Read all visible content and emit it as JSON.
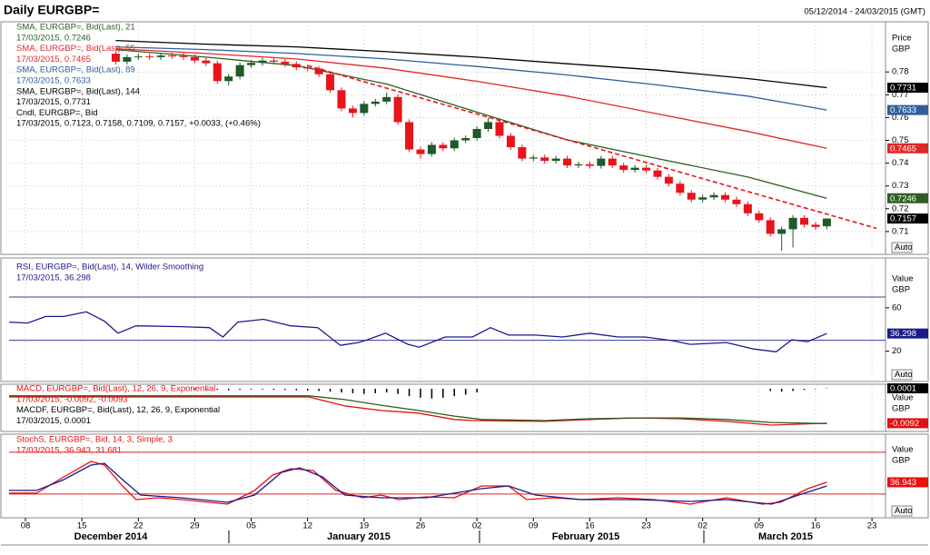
{
  "header": {
    "title": "Daily EURGBP=",
    "range": "05/12/2014 - 24/03/2015 (GMT)"
  },
  "months": [
    "December 2014",
    "January 2015",
    "February 2015",
    "March 2015"
  ],
  "chart_data": [
    {
      "type": "candlestick",
      "axis_title": [
        "Price",
        "GBP"
      ],
      "auto_label": "Auto",
      "grid": true,
      "xlim": [
        -1.45,
        76.2
      ],
      "ylim": [
        0.7,
        0.802
      ],
      "yticks": [
        0.71,
        0.72,
        0.73,
        0.74,
        0.75,
        0.76,
        0.77,
        0.78
      ],
      "up_color": "#1e5a2a",
      "down_color": "#e8141c",
      "candle_name": "Cndl, EURGBP=, Bid",
      "candle_value": "17/03/2015, 0.7123, 0.7158, 0.7109, 0.7157, +0.0033, (+0.46%)",
      "x": [
        8,
        9,
        10,
        11,
        12,
        13,
        14,
        15,
        16,
        17,
        18,
        19,
        20,
        21,
        22,
        23,
        24,
        25,
        26,
        27,
        28,
        29,
        30,
        31,
        32,
        33,
        34,
        35,
        36,
        37,
        38,
        39,
        40,
        41,
        42,
        43,
        44,
        45,
        46,
        47,
        48,
        49,
        50,
        51,
        52,
        53,
        54,
        55,
        56,
        57,
        58,
        59,
        60,
        61,
        62,
        63,
        64,
        65,
        66,
        67,
        68,
        69,
        70,
        71
      ],
      "ohlc": [
        [
          0.788,
          0.7892,
          0.7833,
          0.7845
        ],
        [
          0.7845,
          0.7877,
          0.7833,
          0.7865
        ],
        [
          0.7865,
          0.788,
          0.7853,
          0.7868
        ],
        [
          0.7868,
          0.788,
          0.7853,
          0.7865
        ],
        [
          0.7865,
          0.7884,
          0.7853,
          0.7872
        ],
        [
          0.7872,
          0.7884,
          0.7858,
          0.787
        ],
        [
          0.787,
          0.7882,
          0.7853,
          0.7865
        ],
        [
          0.7865,
          0.7877,
          0.7838,
          0.785
        ],
        [
          0.785,
          0.7862,
          0.7826,
          0.7838
        ],
        [
          0.7838,
          0.785,
          0.7748,
          0.776
        ],
        [
          0.776,
          0.7792,
          0.774,
          0.778
        ],
        [
          0.778,
          0.7842,
          0.7768,
          0.783
        ],
        [
          0.783,
          0.7852,
          0.7818,
          0.784
        ],
        [
          0.784,
          0.7862,
          0.7828,
          0.785
        ],
        [
          0.785,
          0.7862,
          0.7833,
          0.7845
        ],
        [
          0.7845,
          0.7857,
          0.7823,
          0.7835
        ],
        [
          0.7835,
          0.7847,
          0.7808,
          0.782
        ],
        [
          0.782,
          0.7832,
          0.7803,
          0.7815
        ],
        [
          0.7815,
          0.7827,
          0.7778,
          0.779
        ],
        [
          0.779,
          0.7802,
          0.7708,
          0.772
        ],
        [
          0.772,
          0.7732,
          0.7628,
          0.764
        ],
        [
          0.764,
          0.7652,
          0.76,
          0.762
        ],
        [
          0.762,
          0.7672,
          0.7608,
          0.766
        ],
        [
          0.766,
          0.7682,
          0.7648,
          0.767
        ],
        [
          0.767,
          0.771,
          0.7658,
          0.769
        ],
        [
          0.769,
          0.7702,
          0.7568,
          0.758
        ],
        [
          0.758,
          0.7592,
          0.7448,
          0.746
        ],
        [
          0.746,
          0.7472,
          0.742,
          0.744
        ],
        [
          0.744,
          0.7492,
          0.7428,
          0.748
        ],
        [
          0.748,
          0.7492,
          0.7453,
          0.7465
        ],
        [
          0.7465,
          0.7512,
          0.7453,
          0.75
        ],
        [
          0.75,
          0.7522,
          0.7488,
          0.751
        ],
        [
          0.751,
          0.7562,
          0.7498,
          0.755
        ],
        [
          0.755,
          0.76,
          0.7538,
          0.758
        ],
        [
          0.758,
          0.7592,
          0.7508,
          0.752
        ],
        [
          0.752,
          0.7532,
          0.7458,
          0.747
        ],
        [
          0.747,
          0.7482,
          0.7408,
          0.742
        ],
        [
          0.742,
          0.7437,
          0.7408,
          0.7425
        ],
        [
          0.7425,
          0.7437,
          0.7398,
          0.741
        ],
        [
          0.741,
          0.7432,
          0.7398,
          0.742
        ],
        [
          0.742,
          0.7432,
          0.7378,
          0.739
        ],
        [
          0.739,
          0.7407,
          0.7378,
          0.7395
        ],
        [
          0.7395,
          0.7407,
          0.7376,
          0.7388
        ],
        [
          0.7388,
          0.7432,
          0.7376,
          0.742
        ],
        [
          0.742,
          0.7432,
          0.7378,
          0.739
        ],
        [
          0.739,
          0.7402,
          0.7358,
          0.737
        ],
        [
          0.737,
          0.7392,
          0.7358,
          0.738
        ],
        [
          0.738,
          0.7392,
          0.7356,
          0.7368
        ],
        [
          0.7368,
          0.738,
          0.7328,
          0.734
        ],
        [
          0.734,
          0.7352,
          0.7298,
          0.731
        ],
        [
          0.731,
          0.7322,
          0.7258,
          0.727
        ],
        [
          0.727,
          0.7282,
          0.7228,
          0.724
        ],
        [
          0.724,
          0.7262,
          0.7228,
          0.725
        ],
        [
          0.725,
          0.7272,
          0.7238,
          0.726
        ],
        [
          0.726,
          0.7272,
          0.7228,
          0.724
        ],
        [
          0.724,
          0.7252,
          0.7208,
          0.722
        ],
        [
          0.722,
          0.7232,
          0.7168,
          0.718
        ],
        [
          0.718,
          0.7192,
          0.7138,
          0.715
        ],
        [
          0.715,
          0.7162,
          0.7078,
          0.709
        ],
        [
          0.709,
          0.7122,
          0.7015,
          0.711
        ],
        [
          0.711,
          0.7172,
          0.703,
          0.716
        ],
        [
          0.716,
          0.7172,
          0.7118,
          0.713
        ],
        [
          0.713,
          0.7142,
          0.7108,
          0.712
        ],
        [
          0.7123,
          0.7158,
          0.7109,
          0.7157
        ]
      ],
      "badge_color": "#000000",
      "series": [
        {
          "name": "SMA, EURGBP=, Bid(Last), 21",
          "legend_value": "17/03/2015, 0.7246",
          "color": "#2e5e22",
          "badge": true,
          "x": [
            8,
            16,
            24,
            32,
            40,
            48,
            56,
            64,
            71
          ],
          "values": [
            0.7898,
            0.7865,
            0.7828,
            0.7747,
            0.7624,
            0.7502,
            0.742,
            0.7339,
            0.7246
          ]
        },
        {
          "name": "SMA, EURGBP=, Bid(Last), 55",
          "legend_value": "17/03/2015, 0.7465",
          "color": "#e02828",
          "badge": true,
          "x": [
            8,
            16,
            24,
            32,
            40,
            48,
            56,
            64,
            71
          ],
          "values": [
            0.7902,
            0.7881,
            0.7857,
            0.7816,
            0.7759,
            0.7694,
            0.7616,
            0.7539,
            0.7465
          ]
        },
        {
          "name": "SMA, EURGBP=, Bid(Last), 89",
          "legend_value": "17/03/2015, 0.7633",
          "color": "#2f5f9a",
          "badge": true,
          "x": [
            8,
            16,
            24,
            32,
            40,
            48,
            56,
            64,
            71
          ],
          "values": [
            0.791,
            0.7898,
            0.7881,
            0.7857,
            0.7824,
            0.7787,
            0.7743,
            0.7694,
            0.7633
          ]
        },
        {
          "name": "SMA, EURGBP=, Bid(Last), 144",
          "legend_value": "17/03/2015, 0.7731",
          "color": "#000000",
          "badge": true,
          "x": [
            8,
            16,
            24,
            32,
            40,
            48,
            56,
            64,
            71
          ],
          "values": [
            0.7938,
            0.7922,
            0.791,
            0.7889,
            0.7865,
            0.7836,
            0.7808,
            0.7771,
            0.7731
          ]
        },
        {
          "color": "#e8141c",
          "dashed": true,
          "x": [
            25,
            75.4
          ],
          "values": [
            0.7828,
            0.7114
          ]
        }
      ]
    },
    {
      "type": "line",
      "axis_title": [
        "Value",
        "GBP"
      ],
      "auto_label": "Auto",
      "xlim": [
        -1.45,
        76.2
      ],
      "ylim": [
        -8,
        106
      ],
      "yticks": [
        20,
        60
      ],
      "levels": [
        70,
        30
      ],
      "level_color": "#3a3a9a",
      "series": [
        {
          "name": "RSI, EURGBP=, Bid(Last),  14, Wilder Smoothing",
          "legend_value": "17/03/2015, 36.298",
          "color": "#1a1a8c",
          "badge": true,
          "x": [
            -1.45,
            0.2,
            1.8,
            3.4,
            5.4,
            7,
            8.2,
            9.8,
            13.8,
            16.3,
            17.5,
            18.8,
            21.1,
            23.5,
            25.9,
            27.9,
            29.5,
            30.3,
            31.9,
            33.9,
            34.9,
            37.2,
            39.6,
            41.2,
            42.8,
            45.2,
            47.6,
            50,
            52.5,
            54.9,
            57.3,
            58.9,
            62.1,
            64.5,
            66.5,
            67.9,
            69.3,
            71
          ],
          "values": [
            46.8,
            46,
            52,
            52,
            56.3,
            47.7,
            36.6,
            43.4,
            42.6,
            41.7,
            33.1,
            46.8,
            49.4,
            43.4,
            41.7,
            25.4,
            28,
            30.6,
            36.6,
            26.3,
            23.7,
            33.1,
            33.1,
            41.7,
            34.8,
            34.8,
            33.1,
            36.6,
            33.1,
            33.1,
            29.7,
            26.3,
            28,
            22,
            19.4,
            30.6,
            28.8,
            36.298
          ]
        }
      ]
    },
    {
      "type": "line",
      "axis_title": [
        "Value",
        "GBP"
      ],
      "xlim": [
        -1.45,
        76.2
      ],
      "ylim": [
        -0.0114,
        0.0012
      ],
      "yticks": [],
      "series": [
        {
          "name": "MACD, EURGBP=, Bid(Last),  12, 26, 9, Exponential",
          "legend_value": "17/03/2015, -0.0092, -0.0093",
          "color": "#e01010",
          "badge": true,
          "x": [
            -1.45,
            5.8,
            13.8,
            25.1,
            28.3,
            31.5,
            34.8,
            38,
            39.6,
            46,
            50,
            54,
            58,
            62.1,
            66.1,
            71
          ],
          "values": [
            -0.0022,
            -0.0022,
            -0.0022,
            -0.0022,
            -0.0046,
            -0.0058,
            -0.0065,
            -0.0082,
            -0.0085,
            -0.0087,
            -0.0082,
            -0.0078,
            -0.008,
            -0.0087,
            -0.0097,
            -0.0092
          ]
        },
        {
          "color": "#2d5a1e",
          "x": [
            -1.45,
            25.1,
            28.3,
            31.5,
            34.8,
            38,
            40.4,
            46,
            50,
            54,
            58,
            62.1,
            66.1,
            71
          ],
          "values": [
            -0.0019,
            -0.0019,
            -0.0029,
            -0.0044,
            -0.0058,
            -0.0073,
            -0.0082,
            -0.0085,
            -0.008,
            -0.0078,
            -0.0078,
            -0.0082,
            -0.009,
            -0.0093
          ]
        },
        {
          "name": "MACDF, EURGBP=, Bid(Last),  12, 26, 9, Exponential",
          "legend_value": "17/03/2015, 0.0001",
          "color": "#000000",
          "badge": true,
          "kind": "bar",
          "x": [
            15,
            16,
            17,
            18,
            19,
            20,
            21,
            22,
            23,
            24,
            25,
            26,
            27,
            28,
            29,
            30,
            31,
            32,
            33,
            34,
            35,
            36,
            37,
            38,
            39,
            40,
            66,
            67,
            68,
            69,
            70,
            71
          ],
          "values": [
            -0.0002,
            -0.0003,
            -0.0003,
            -0.0004,
            -0.0003,
            -0.0002,
            -0.0002,
            -0.0003,
            -0.0003,
            -0.0004,
            -0.0005,
            -0.0006,
            -0.0008,
            -0.001,
            -0.0012,
            -0.0014,
            -0.0012,
            -0.001,
            -0.0014,
            -0.002,
            -0.0024,
            -0.0026,
            -0.0024,
            -0.002,
            -0.0016,
            -0.001,
            -0.0006,
            -0.0008,
            -0.0006,
            -0.0003,
            -0.0001,
            0.0001
          ]
        }
      ]
    },
    {
      "type": "line",
      "axis_title": [
        "Value",
        "GBP"
      ],
      "auto_label": "Auto",
      "xlim": [
        -1.45,
        76.2
      ],
      "ylim": [
        -14,
        106
      ],
      "yticks": [],
      "levels": [
        80,
        20
      ],
      "level_color": "#d82020",
      "xticks": [
        {
          "value": 0,
          "label": "08"
        },
        {
          "value": 5,
          "label": "15"
        },
        {
          "value": 10,
          "label": "22"
        },
        {
          "value": 15,
          "label": "29"
        },
        {
          "value": 20,
          "label": "05"
        },
        {
          "value": 25,
          "label": "12"
        },
        {
          "value": 30,
          "label": "19"
        },
        {
          "value": 35,
          "label": "26"
        },
        {
          "value": 40,
          "label": "02"
        },
        {
          "value": 45,
          "label": "09"
        },
        {
          "value": 50,
          "label": "16"
        },
        {
          "value": 55,
          "label": "23"
        },
        {
          "value": 60,
          "label": "02"
        },
        {
          "value": 65,
          "label": "09"
        },
        {
          "value": 70,
          "label": "16"
        },
        {
          "value": 75,
          "label": "23"
        }
      ],
      "series": [
        {
          "name": "StochS, EURGBP=, Bid,  14, 3, Simple, 3",
          "legend_value": "17/03/2015, 36.943, 31.681",
          "color": "#e81010",
          "badge": true,
          "x": [
            -1.45,
            1,
            3.4,
            5.8,
            7,
            8.6,
            9.8,
            11.8,
            13.8,
            17.9,
            20.3,
            21.9,
            23.5,
            25.5,
            27.5,
            29.9,
            31.5,
            33.1,
            35.5,
            38,
            40.4,
            42.8,
            44.4,
            46.8,
            49.2,
            52.5,
            55.7,
            58.9,
            62.1,
            65.3,
            66.9,
            69.3,
            71
          ],
          "values": [
            21.3,
            21.3,
            44.7,
            66.9,
            61.7,
            31.7,
            12.1,
            14.7,
            12.1,
            5.6,
            25.2,
            47.3,
            56.5,
            53.8,
            25.2,
            14.7,
            18.6,
            12.1,
            16,
            14.7,
            31.7,
            31.7,
            12.1,
            14.7,
            12.1,
            14.7,
            12.1,
            5.6,
            14.7,
            5.6,
            8.2,
            27.8,
            36.943
          ]
        },
        {
          "color": "#1a1a8c",
          "x": [
            -1.45,
            1,
            3.4,
            5.8,
            7,
            8.6,
            10.2,
            13.8,
            17.9,
            20.3,
            22.7,
            24.3,
            26.3,
            28.3,
            31.5,
            35.5,
            40.4,
            42.8,
            45.2,
            49.2,
            54.1,
            58.9,
            62.1,
            66.1,
            68.5,
            71
          ],
          "values": [
            25.2,
            25.2,
            40.8,
            61.7,
            64.3,
            40.8,
            18.6,
            14.7,
            8.2,
            18.6,
            51.2,
            57.8,
            44.7,
            18.6,
            14.7,
            14.7,
            27.8,
            31.7,
            18.6,
            12.1,
            12.1,
            9.5,
            12.1,
            5.6,
            18.6,
            31.681
          ]
        }
      ]
    }
  ]
}
